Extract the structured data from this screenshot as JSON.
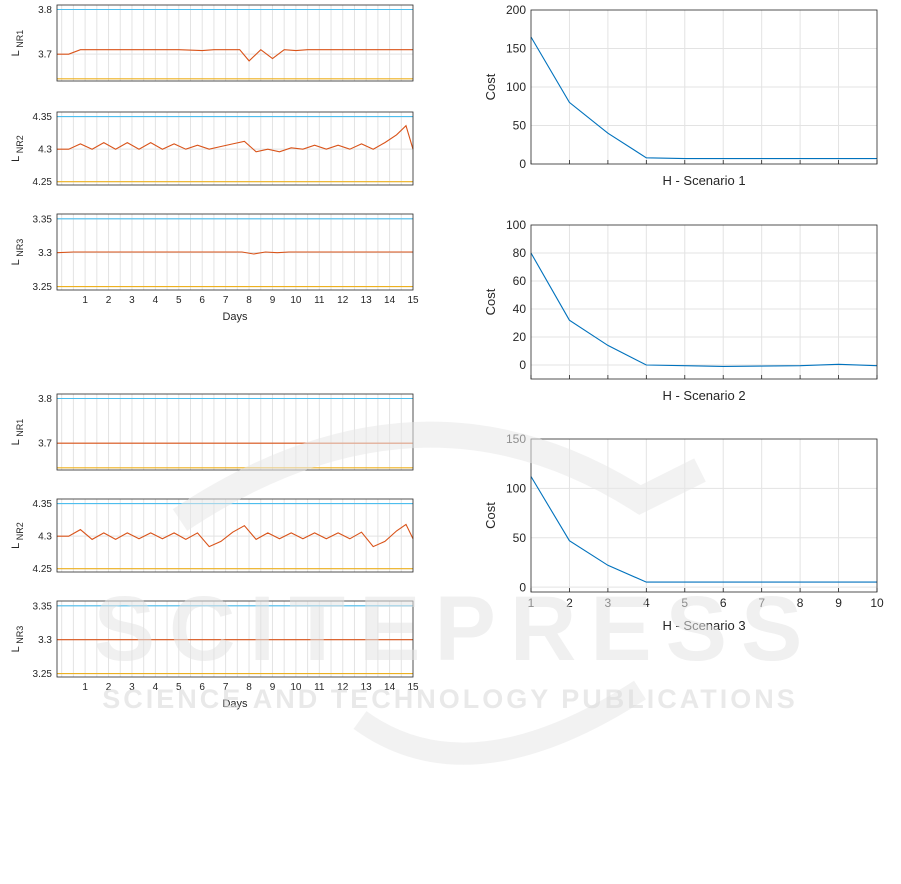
{
  "watermark": {
    "main_text": "SCITEPRESS",
    "sub_text": "SCIENCE AND TECHNOLOGY PUBLICATIONS"
  },
  "colors": {
    "upper_bound": "#4DBEEE",
    "level": "#D95319",
    "lower_bound": "#EDB120",
    "cost": "#0072BD",
    "grid": "#e3e3e3",
    "axis": "#262626",
    "watermark": "#e4e4e4"
  },
  "chart_data": [
    {
      "id": "left-top-nr1",
      "type": "line",
      "title": "",
      "ylabel": "L",
      "ylabel_sub": "NR1",
      "xlabel": "",
      "xlim": [
        -0.2,
        15
      ],
      "ylim": [
        3.64,
        3.81
      ],
      "yticks": [
        3.7,
        3.8
      ],
      "xticks": [],
      "x_grid_step": 0.5,
      "series": [
        {
          "role": "upper",
          "x": [
            -0.2,
            15
          ],
          "y": [
            3.8,
            3.8
          ]
        },
        {
          "role": "lower",
          "x": [
            -0.2,
            15
          ],
          "y": [
            3.645,
            3.645
          ]
        },
        {
          "role": "level",
          "x": [
            -0.2,
            0.3,
            0.8,
            1,
            2,
            3,
            4,
            5,
            6,
            6.5,
            7,
            7.6,
            8,
            8.5,
            9,
            9.5,
            10,
            10.5,
            11,
            12,
            13,
            14,
            15
          ],
          "y": [
            3.7,
            3.7,
            3.71,
            3.71,
            3.71,
            3.71,
            3.71,
            3.71,
            3.708,
            3.71,
            3.71,
            3.71,
            3.685,
            3.71,
            3.69,
            3.71,
            3.708,
            3.71,
            3.71,
            3.71,
            3.71,
            3.71,
            3.71
          ]
        }
      ]
    },
    {
      "id": "left-top-nr2",
      "type": "line",
      "title": "",
      "ylabel": "L",
      "ylabel_sub": "NR2",
      "xlabel": "",
      "xlim": [
        -0.2,
        15
      ],
      "ylim": [
        4.245,
        4.357
      ],
      "yticks": [
        4.25,
        4.3,
        4.35
      ],
      "xticks": [],
      "x_grid_step": 0.5,
      "series": [
        {
          "role": "upper",
          "x": [
            -0.2,
            15
          ],
          "y": [
            4.35,
            4.35
          ]
        },
        {
          "role": "lower",
          "x": [
            -0.2,
            15
          ],
          "y": [
            4.25,
            4.25
          ]
        },
        {
          "role": "level",
          "x": [
            -0.2,
            0.3,
            0.8,
            1.3,
            1.8,
            2.3,
            2.8,
            3.3,
            3.8,
            4.3,
            4.8,
            5.3,
            5.8,
            6.3,
            6.8,
            7.3,
            7.8,
            8.3,
            8.8,
            9.3,
            9.8,
            10.3,
            10.8,
            11.3,
            11.8,
            12.3,
            12.8,
            13.3,
            13.8,
            14.3,
            14.7,
            15
          ],
          "y": [
            4.3,
            4.3,
            4.308,
            4.3,
            4.31,
            4.3,
            4.31,
            4.3,
            4.31,
            4.3,
            4.308,
            4.3,
            4.306,
            4.3,
            4.304,
            4.308,
            4.312,
            4.296,
            4.3,
            4.296,
            4.302,
            4.3,
            4.306,
            4.3,
            4.306,
            4.3,
            4.308,
            4.3,
            4.31,
            4.322,
            4.336,
            4.3
          ]
        }
      ]
    },
    {
      "id": "left-top-nr3",
      "type": "line",
      "title": "",
      "ylabel": "L",
      "ylabel_sub": "NR3",
      "xlabel": "Days",
      "xlim": [
        -0.2,
        15
      ],
      "ylim": [
        3.245,
        3.357
      ],
      "yticks": [
        3.25,
        3.3,
        3.35
      ],
      "xticks": [
        1,
        2,
        3,
        4,
        5,
        6,
        7,
        8,
        9,
        10,
        11,
        12,
        13,
        14,
        15
      ],
      "x_grid_step": 0.5,
      "series": [
        {
          "role": "upper",
          "x": [
            -0.2,
            15
          ],
          "y": [
            3.35,
            3.35
          ]
        },
        {
          "role": "lower",
          "x": [
            -0.2,
            15
          ],
          "y": [
            3.25,
            3.25
          ]
        },
        {
          "role": "level",
          "x": [
            -0.2,
            0.5,
            1,
            2,
            3,
            4,
            5,
            6,
            7,
            7.7,
            8.2,
            8.7,
            9.2,
            9.7,
            10,
            11,
            12,
            13,
            14,
            15
          ],
          "y": [
            3.3,
            3.301,
            3.301,
            3.301,
            3.301,
            3.301,
            3.301,
            3.301,
            3.301,
            3.301,
            3.298,
            3.301,
            3.3,
            3.301,
            3.301,
            3.301,
            3.301,
            3.301,
            3.301,
            3.301
          ]
        }
      ]
    },
    {
      "id": "left-bottom-nr1",
      "type": "line",
      "title": "",
      "ylabel": "L",
      "ylabel_sub": "NR1",
      "xlabel": "",
      "xlim": [
        -0.2,
        15
      ],
      "ylim": [
        3.64,
        3.81
      ],
      "yticks": [
        3.7,
        3.8
      ],
      "xticks": [],
      "x_grid_step": 0.5,
      "series": [
        {
          "role": "upper",
          "x": [
            -0.2,
            15
          ],
          "y": [
            3.8,
            3.8
          ]
        },
        {
          "role": "lower",
          "x": [
            -0.2,
            15
          ],
          "y": [
            3.645,
            3.645
          ]
        },
        {
          "role": "level",
          "x": [
            -0.2,
            15
          ],
          "y": [
            3.7,
            3.7
          ]
        }
      ]
    },
    {
      "id": "left-bottom-nr2",
      "type": "line",
      "title": "",
      "ylabel": "L",
      "ylabel_sub": "NR2",
      "xlabel": "",
      "xlim": [
        -0.2,
        15
      ],
      "ylim": [
        4.245,
        4.357
      ],
      "yticks": [
        4.25,
        4.3,
        4.35
      ],
      "xticks": [],
      "x_grid_step": 0.5,
      "series": [
        {
          "role": "upper",
          "x": [
            -0.2,
            15
          ],
          "y": [
            4.35,
            4.35
          ]
        },
        {
          "role": "lower",
          "x": [
            -0.2,
            15
          ],
          "y": [
            4.25,
            4.25
          ]
        },
        {
          "role": "level",
          "x": [
            -0.2,
            0.3,
            0.8,
            1.3,
            1.8,
            2.3,
            2.8,
            3.3,
            3.8,
            4.3,
            4.8,
            5.3,
            5.8,
            6.3,
            6.8,
            7.3,
            7.8,
            8.3,
            8.8,
            9.3,
            9.8,
            10.3,
            10.8,
            11.3,
            11.8,
            12.3,
            12.8,
            13.3,
            13.8,
            14.3,
            14.7,
            15
          ],
          "y": [
            4.3,
            4.3,
            4.31,
            4.295,
            4.305,
            4.295,
            4.305,
            4.296,
            4.305,
            4.296,
            4.305,
            4.295,
            4.305,
            4.284,
            4.292,
            4.306,
            4.316,
            4.295,
            4.305,
            4.296,
            4.305,
            4.296,
            4.305,
            4.296,
            4.305,
            4.296,
            4.306,
            4.284,
            4.292,
            4.308,
            4.318,
            4.296
          ]
        }
      ]
    },
    {
      "id": "left-bottom-nr3",
      "type": "line",
      "title": "",
      "ylabel": "L",
      "ylabel_sub": "NR3",
      "xlabel": "Days",
      "xlim": [
        -0.2,
        15
      ],
      "ylim": [
        3.245,
        3.357
      ],
      "yticks": [
        3.25,
        3.3,
        3.35
      ],
      "xticks": [
        1,
        2,
        3,
        4,
        5,
        6,
        7,
        8,
        9,
        10,
        11,
        12,
        13,
        14,
        15
      ],
      "x_grid_step": 0.5,
      "series": [
        {
          "role": "upper",
          "x": [
            -0.2,
            15
          ],
          "y": [
            3.35,
            3.35
          ]
        },
        {
          "role": "lower",
          "x": [
            -0.2,
            15
          ],
          "y": [
            3.25,
            3.25
          ]
        },
        {
          "role": "level",
          "x": [
            -0.2,
            15
          ],
          "y": [
            3.3,
            3.3
          ]
        }
      ]
    },
    {
      "id": "cost-scenario-1",
      "type": "line",
      "title": "",
      "ylabel": "Cost",
      "ylabel_sub": "",
      "xlabel": "H - Scenario 1",
      "xlim": [
        1,
        10
      ],
      "ylim": [
        0,
        200
      ],
      "yticks": [
        0,
        50,
        100,
        150,
        200
      ],
      "xticks": [],
      "x_grid_step": 1,
      "series": [
        {
          "role": "cost",
          "x": [
            1,
            2,
            3,
            4,
            5,
            6,
            7,
            8,
            9,
            10
          ],
          "y": [
            165,
            80,
            40,
            8,
            7,
            7,
            7,
            7,
            7,
            7
          ]
        }
      ]
    },
    {
      "id": "cost-scenario-2",
      "type": "line",
      "title": "",
      "ylabel": "Cost",
      "ylabel_sub": "",
      "xlabel": "H - Scenario 2",
      "xlim": [
        1,
        10
      ],
      "ylim": [
        -10,
        100
      ],
      "yticks": [
        0,
        20,
        40,
        60,
        80,
        100
      ],
      "xticks": [],
      "x_grid_step": 1,
      "series": [
        {
          "role": "cost",
          "x": [
            1,
            2,
            3,
            4,
            5,
            6,
            7,
            8,
            9,
            10
          ],
          "y": [
            80,
            32,
            14,
            0,
            -0.5,
            -1,
            -0.8,
            -0.5,
            0.5,
            -0.5
          ]
        }
      ]
    },
    {
      "id": "cost-scenario-3",
      "type": "line",
      "title": "",
      "ylabel": "Cost",
      "ylabel_sub": "",
      "xlabel": "H - Scenario 3",
      "xlim": [
        1,
        10
      ],
      "ylim": [
        -5,
        150
      ],
      "yticks": [
        0,
        50,
        100,
        150
      ],
      "xticks": [
        1,
        2,
        3,
        4,
        5,
        6,
        7,
        8,
        9,
        10
      ],
      "x_grid_step": 1,
      "series": [
        {
          "role": "cost",
          "x": [
            1,
            2,
            3,
            4,
            5,
            6,
            7,
            8,
            9,
            10
          ],
          "y": [
            112,
            47,
            22,
            5,
            5,
            5,
            5,
            5,
            5,
            5
          ]
        }
      ]
    }
  ]
}
